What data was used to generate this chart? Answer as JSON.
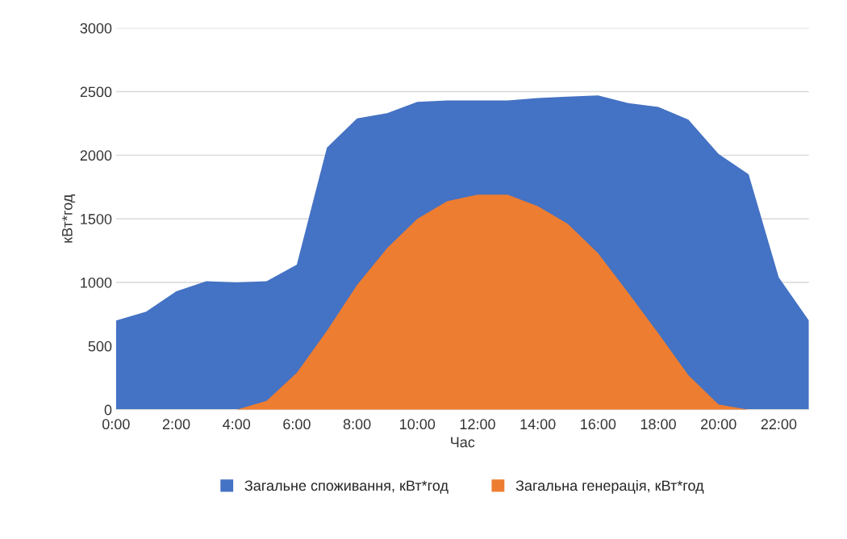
{
  "chart_data": {
    "type": "area",
    "xlabel": "Час",
    "ylabel": "кВт*год",
    "categories": [
      "0:00",
      null,
      "2:00",
      null,
      "4:00",
      null,
      "6:00",
      null,
      "8:00",
      null,
      "10:00",
      null,
      "12:00",
      null,
      "14:00",
      null,
      "16:00",
      null,
      "18:00",
      null,
      "20:00",
      null,
      "22:00",
      null
    ],
    "series": [
      {
        "name": "Загальне споживання, кВт*год",
        "color": "#4472c4",
        "values": [
          700,
          770,
          930,
          1010,
          1000,
          1010,
          1140,
          2060,
          2290,
          2330,
          2420,
          2430,
          2430,
          2430,
          2450,
          2460,
          2470,
          2410,
          2380,
          2280,
          2010,
          1850,
          1040,
          700
        ]
      },
      {
        "name": "Загальна генерація, кВт*год",
        "color": "#ed7d31",
        "values": [
          0,
          0,
          0,
          0,
          0,
          70,
          290,
          620,
          980,
          1270,
          1500,
          1640,
          1690,
          1690,
          1600,
          1460,
          1230,
          920,
          600,
          270,
          40,
          0,
          0,
          0
        ]
      }
    ],
    "ylim": [
      0,
      3000
    ],
    "yticks": [
      0,
      500,
      1000,
      1500,
      2000,
      2500,
      3000
    ],
    "grid": "y",
    "legend": "bottom"
  }
}
